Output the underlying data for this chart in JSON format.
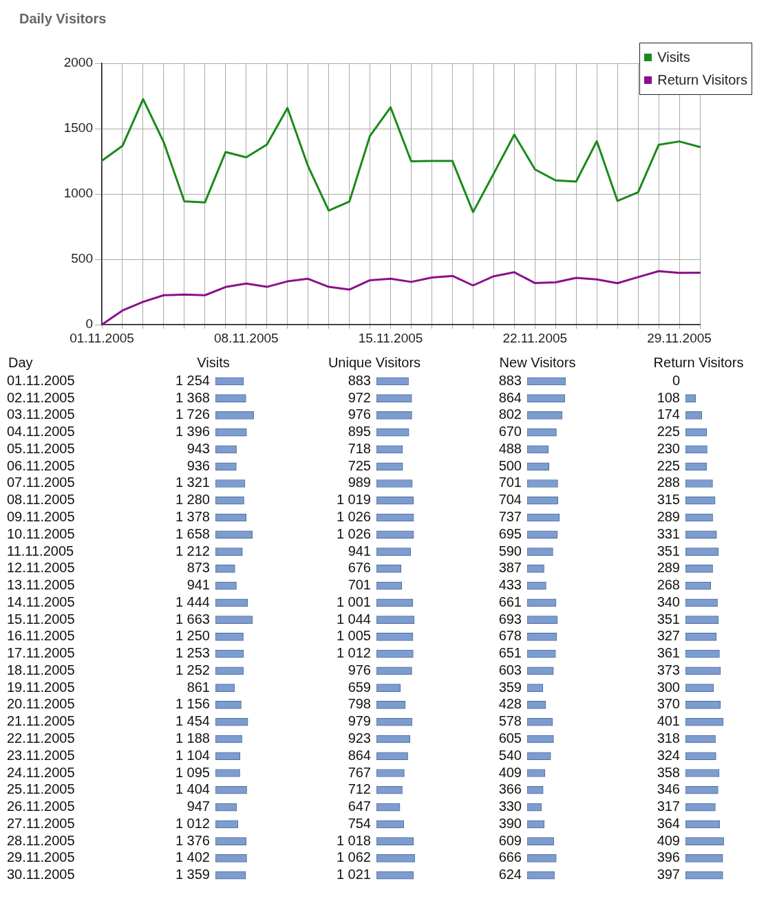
{
  "chart_data": [
    {
      "type": "line",
      "title": "Daily Visitors",
      "categories": [
        "01.11.2005",
        null,
        null,
        null,
        null,
        null,
        null,
        "08.11.2005",
        null,
        null,
        null,
        null,
        null,
        null,
        "15.11.2005",
        null,
        null,
        null,
        null,
        null,
        null,
        "22.11.2005",
        null,
        null,
        null,
        null,
        null,
        null,
        "29.11.2005",
        null
      ],
      "series": [
        {
          "name": "Visits",
          "color": "#1a8a1a",
          "values": [
            1254,
            1368,
            1726,
            1396,
            943,
            936,
            1321,
            1280,
            1378,
            1658,
            1212,
            873,
            941,
            1444,
            1663,
            1250,
            1253,
            1252,
            861,
            1156,
            1454,
            1188,
            1104,
            1095,
            1404,
            947,
            1012,
            1376,
            1402,
            1359
          ]
        },
        {
          "name": "Return Visitors",
          "color": "#8b108b",
          "values": [
            0,
            108,
            174,
            225,
            230,
            225,
            288,
            315,
            289,
            331,
            351,
            289,
            268,
            340,
            351,
            327,
            361,
            373,
            300,
            370,
            401,
            318,
            324,
            358,
            346,
            317,
            364,
            409,
            396,
            397
          ]
        }
      ],
      "ylim": [
        0,
        2000
      ],
      "yticks": [
        0,
        500,
        1000,
        1500,
        2000
      ],
      "grid": true,
      "legend": "top right",
      "marker": "none",
      "line_style": "solid"
    },
    {
      "type": "bar",
      "orientation": "horizontal",
      "title": "Visits",
      "ylabel": "Day",
      "categories": [
        "01.11.2005",
        "02.11.2005",
        "03.11.2005",
        "04.11.2005",
        "05.11.2005",
        "06.11.2005",
        "07.11.2005",
        "08.11.2005",
        "09.11.2005",
        "10.11.2005",
        "11.11.2005",
        "12.11.2005",
        "13.11.2005",
        "14.11.2005",
        "15.11.2005",
        "16.11.2005",
        "17.11.2005",
        "18.11.2005",
        "19.11.2005",
        "20.11.2005",
        "21.11.2005",
        "22.11.2005",
        "23.11.2005",
        "24.11.2005",
        "25.11.2005",
        "26.11.2005",
        "27.11.2005",
        "28.11.2005",
        "29.11.2005",
        "30.11.2005"
      ],
      "values": [
        1254,
        1368,
        1726,
        1396,
        943,
        936,
        1321,
        1280,
        1378,
        1658,
        1212,
        873,
        941,
        1444,
        1663,
        1250,
        1253,
        1252,
        861,
        1156,
        1454,
        1188,
        1104,
        1095,
        1404,
        947,
        1012,
        1376,
        1402,
        1359
      ],
      "color": "#7d9ccf",
      "data_labels": true,
      "tick_labels": "y"
    },
    {
      "type": "bar",
      "orientation": "horizontal",
      "title": "Unique Visitors",
      "categories": [
        "01.11.2005",
        "02.11.2005",
        "03.11.2005",
        "04.11.2005",
        "05.11.2005",
        "06.11.2005",
        "07.11.2005",
        "08.11.2005",
        "09.11.2005",
        "10.11.2005",
        "11.11.2005",
        "12.11.2005",
        "13.11.2005",
        "14.11.2005",
        "15.11.2005",
        "16.11.2005",
        "17.11.2005",
        "18.11.2005",
        "19.11.2005",
        "20.11.2005",
        "21.11.2005",
        "22.11.2005",
        "23.11.2005",
        "24.11.2005",
        "25.11.2005",
        "26.11.2005",
        "27.11.2005",
        "28.11.2005",
        "29.11.2005",
        "30.11.2005"
      ],
      "values": [
        883,
        972,
        976,
        895,
        718,
        725,
        989,
        1019,
        1026,
        1026,
        941,
        676,
        701,
        1001,
        1044,
        1005,
        1012,
        976,
        659,
        798,
        979,
        923,
        864,
        767,
        712,
        647,
        754,
        1018,
        1062,
        1021
      ],
      "color": "#7d9ccf",
      "data_labels": true,
      "tick_labels": false
    },
    {
      "type": "bar",
      "orientation": "horizontal",
      "title": "New Visitors",
      "categories": [
        "01.11.2005",
        "02.11.2005",
        "03.11.2005",
        "04.11.2005",
        "05.11.2005",
        "06.11.2005",
        "07.11.2005",
        "08.11.2005",
        "09.11.2005",
        "10.11.2005",
        "11.11.2005",
        "12.11.2005",
        "13.11.2005",
        "14.11.2005",
        "15.11.2005",
        "16.11.2005",
        "17.11.2005",
        "18.11.2005",
        "19.11.2005",
        "20.11.2005",
        "21.11.2005",
        "22.11.2005",
        "23.11.2005",
        "24.11.2005",
        "25.11.2005",
        "26.11.2005",
        "27.11.2005",
        "28.11.2005",
        "29.11.2005",
        "30.11.2005"
      ],
      "values": [
        883,
        864,
        802,
        670,
        488,
        500,
        701,
        704,
        737,
        695,
        590,
        387,
        433,
        661,
        693,
        678,
        651,
        603,
        359,
        428,
        578,
        605,
        540,
        409,
        366,
        330,
        390,
        609,
        666,
        624
      ],
      "color": "#7d9ccf",
      "data_labels": true,
      "tick_labels": false
    },
    {
      "type": "bar",
      "orientation": "horizontal",
      "title": "Return Visitors",
      "categories": [
        "01.11.2005",
        "02.11.2005",
        "03.11.2005",
        "04.11.2005",
        "05.11.2005",
        "06.11.2005",
        "07.11.2005",
        "08.11.2005",
        "09.11.2005",
        "10.11.2005",
        "11.11.2005",
        "12.11.2005",
        "13.11.2005",
        "14.11.2005",
        "15.11.2005",
        "16.11.2005",
        "17.11.2005",
        "18.11.2005",
        "19.11.2005",
        "20.11.2005",
        "21.11.2005",
        "22.11.2005",
        "23.11.2005",
        "24.11.2005",
        "25.11.2005",
        "26.11.2005",
        "27.11.2005",
        "28.11.2005",
        "29.11.2005",
        "30.11.2005"
      ],
      "values": [
        0,
        108,
        174,
        225,
        230,
        225,
        288,
        315,
        289,
        331,
        351,
        289,
        268,
        340,
        351,
        327,
        361,
        373,
        300,
        370,
        401,
        318,
        324,
        358,
        346,
        317,
        364,
        409,
        396,
        397
      ],
      "color": "#7d9ccf",
      "data_labels": true,
      "tick_labels": false
    }
  ]
}
